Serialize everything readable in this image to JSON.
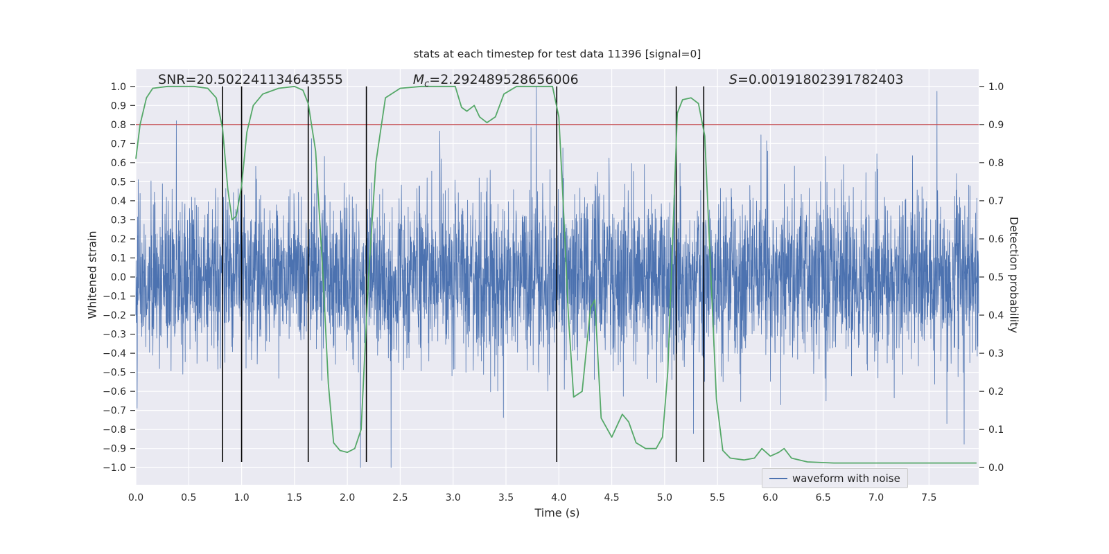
{
  "figure": {
    "title": "stats at each timestep for test data 11396 [signal=0]",
    "xlabel": "Time (s)",
    "ylabel_left": "Whitened strain",
    "ylabel_right": "Detection probability"
  },
  "annotations": [
    {
      "prefix": "SNR",
      "sub": "",
      "value": "=20.502241134643555",
      "x": 0.21
    },
    {
      "prefix": "M",
      "sub": "c",
      "value": "=2.292489528656006",
      "x": 2.62
    },
    {
      "prefix": "S",
      "sub": "",
      "value": "=0.00191802391782403",
      "x": 5.61
    }
  ],
  "legend": {
    "label": "waveform with noise"
  },
  "chart_data": {
    "type": "line",
    "title": "stats at each timestep for test data 11396 [signal=0]",
    "xlabel": "Time (s)",
    "ylabel_left": "Whitened strain",
    "ylabel_right": "Detection probability",
    "xlim": [
      0,
      7.97
    ],
    "ylim_strain": [
      -1.09,
      1.09
    ],
    "ylim_prob": [
      0,
      1
    ],
    "grid": true,
    "legend_position": "lower right",
    "colors": {
      "noise": "#4c72b0",
      "prob": "#55a868",
      "threshold": "#c44e52",
      "vline": "#000000",
      "axes_bg": "#eaeaf2",
      "grid": "#ffffff",
      "text": "#262626"
    },
    "x_ticks": {
      "values": [
        0,
        0.5,
        1,
        1.5,
        2,
        2.5,
        3,
        3.5,
        4,
        4.5,
        5,
        5.5,
        6,
        6.5,
        7,
        7.5
      ],
      "labels": [
        "0.0",
        "0.5",
        "1.0",
        "1.5",
        "2.0",
        "2.5",
        "3.0",
        "3.5",
        "4.0",
        "4.5",
        "5.0",
        "5.5",
        "6.0",
        "6.5",
        "7.0",
        "7.5"
      ]
    },
    "y_ticks_left": {
      "values": [
        1.0,
        0.9,
        0.8,
        0.7,
        0.6,
        0.5,
        0.4,
        0.3,
        0.2,
        0.1,
        0.0,
        -0.1,
        -0.2,
        -0.3,
        -0.4,
        -0.5,
        -0.6,
        -0.7,
        -0.8,
        -0.9,
        -1.0
      ],
      "labels": [
        "1.0",
        "0.9",
        "0.8",
        "0.7",
        "0.6",
        "0.5",
        "0.4",
        "0.3",
        "0.2",
        "0.1",
        "0.0",
        "−0.1",
        "−0.2",
        "−0.3",
        "−0.4",
        "−0.5",
        "−0.6",
        "−0.7",
        "−0.8",
        "−0.9",
        "−1.0"
      ]
    },
    "y_ticks_right": {
      "values": [
        1.0,
        0.9,
        0.8,
        0.7,
        0.6,
        0.5,
        0.4,
        0.3,
        0.2,
        0.1,
        0.0
      ],
      "labels": [
        "1.0",
        "0.9",
        "0.8",
        "0.7",
        "0.6",
        "0.5",
        "0.4",
        "0.3",
        "0.2",
        "0.1",
        "0.0"
      ]
    },
    "threshold_line": {
      "probability": 0.9,
      "strain_equiv": 0.8
    },
    "event_vlines_s": [
      0.82,
      1.0,
      1.63,
      2.18,
      3.98,
      5.11,
      5.37
    ],
    "vline_span_strain": [
      1.0,
      -0.97
    ],
    "noise_waveform": {
      "description": "dense stationary gaussian whitened-strain noise spanning full time axis, core band ±0.25 with spikes up to ±1.0",
      "duration_s": 7.97,
      "n_samples": 4000,
      "sigma": 0.21,
      "spike_prob": 0.012,
      "spike_scale": 2.5,
      "seed": 42
    },
    "detection_probability_curve": {
      "points_t_p": [
        [
          0.0,
          0.81
        ],
        [
          0.04,
          0.9
        ],
        [
          0.1,
          0.97
        ],
        [
          0.16,
          0.995
        ],
        [
          0.3,
          1.0
        ],
        [
          0.55,
          1.0
        ],
        [
          0.68,
          0.995
        ],
        [
          0.76,
          0.97
        ],
        [
          0.82,
          0.89
        ],
        [
          0.87,
          0.73
        ],
        [
          0.91,
          0.65
        ],
        [
          0.95,
          0.66
        ],
        [
          1.0,
          0.74
        ],
        [
          1.05,
          0.88
        ],
        [
          1.11,
          0.95
        ],
        [
          1.2,
          0.98
        ],
        [
          1.35,
          0.995
        ],
        [
          1.5,
          1.0
        ],
        [
          1.58,
          0.99
        ],
        [
          1.63,
          0.955
        ],
        [
          1.7,
          0.83
        ],
        [
          1.77,
          0.5
        ],
        [
          1.82,
          0.22
        ],
        [
          1.87,
          0.065
        ],
        [
          1.93,
          0.045
        ],
        [
          2.0,
          0.04
        ],
        [
          2.07,
          0.05
        ],
        [
          2.13,
          0.1
        ],
        [
          2.2,
          0.5
        ],
        [
          2.27,
          0.8
        ],
        [
          2.36,
          0.97
        ],
        [
          2.5,
          0.995
        ],
        [
          2.7,
          1.0
        ],
        [
          3.02,
          1.0
        ],
        [
          3.08,
          0.945
        ],
        [
          3.13,
          0.935
        ],
        [
          3.2,
          0.95
        ],
        [
          3.25,
          0.92
        ],
        [
          3.32,
          0.905
        ],
        [
          3.4,
          0.92
        ],
        [
          3.48,
          0.98
        ],
        [
          3.6,
          1.0
        ],
        [
          3.94,
          1.0
        ],
        [
          4.0,
          0.92
        ],
        [
          4.04,
          0.7
        ],
        [
          4.09,
          0.4
        ],
        [
          4.14,
          0.185
        ],
        [
          4.22,
          0.2
        ],
        [
          4.3,
          0.42
        ],
        [
          4.34,
          0.44
        ],
        [
          4.4,
          0.13
        ],
        [
          4.5,
          0.08
        ],
        [
          4.6,
          0.14
        ],
        [
          4.66,
          0.12
        ],
        [
          4.73,
          0.065
        ],
        [
          4.82,
          0.05
        ],
        [
          4.92,
          0.05
        ],
        [
          4.98,
          0.08
        ],
        [
          5.03,
          0.25
        ],
        [
          5.07,
          0.55
        ],
        [
          5.12,
          0.93
        ],
        [
          5.17,
          0.965
        ],
        [
          5.25,
          0.97
        ],
        [
          5.32,
          0.955
        ],
        [
          5.38,
          0.87
        ],
        [
          5.43,
          0.55
        ],
        [
          5.49,
          0.18
        ],
        [
          5.55,
          0.045
        ],
        [
          5.62,
          0.025
        ],
        [
          5.75,
          0.02
        ],
        [
          5.85,
          0.025
        ],
        [
          5.92,
          0.05
        ],
        [
          6.0,
          0.03
        ],
        [
          6.08,
          0.04
        ],
        [
          6.13,
          0.05
        ],
        [
          6.2,
          0.025
        ],
        [
          6.35,
          0.015
        ],
        [
          6.6,
          0.012
        ],
        [
          7.0,
          0.012
        ],
        [
          7.5,
          0.012
        ],
        [
          7.95,
          0.012
        ]
      ]
    }
  }
}
